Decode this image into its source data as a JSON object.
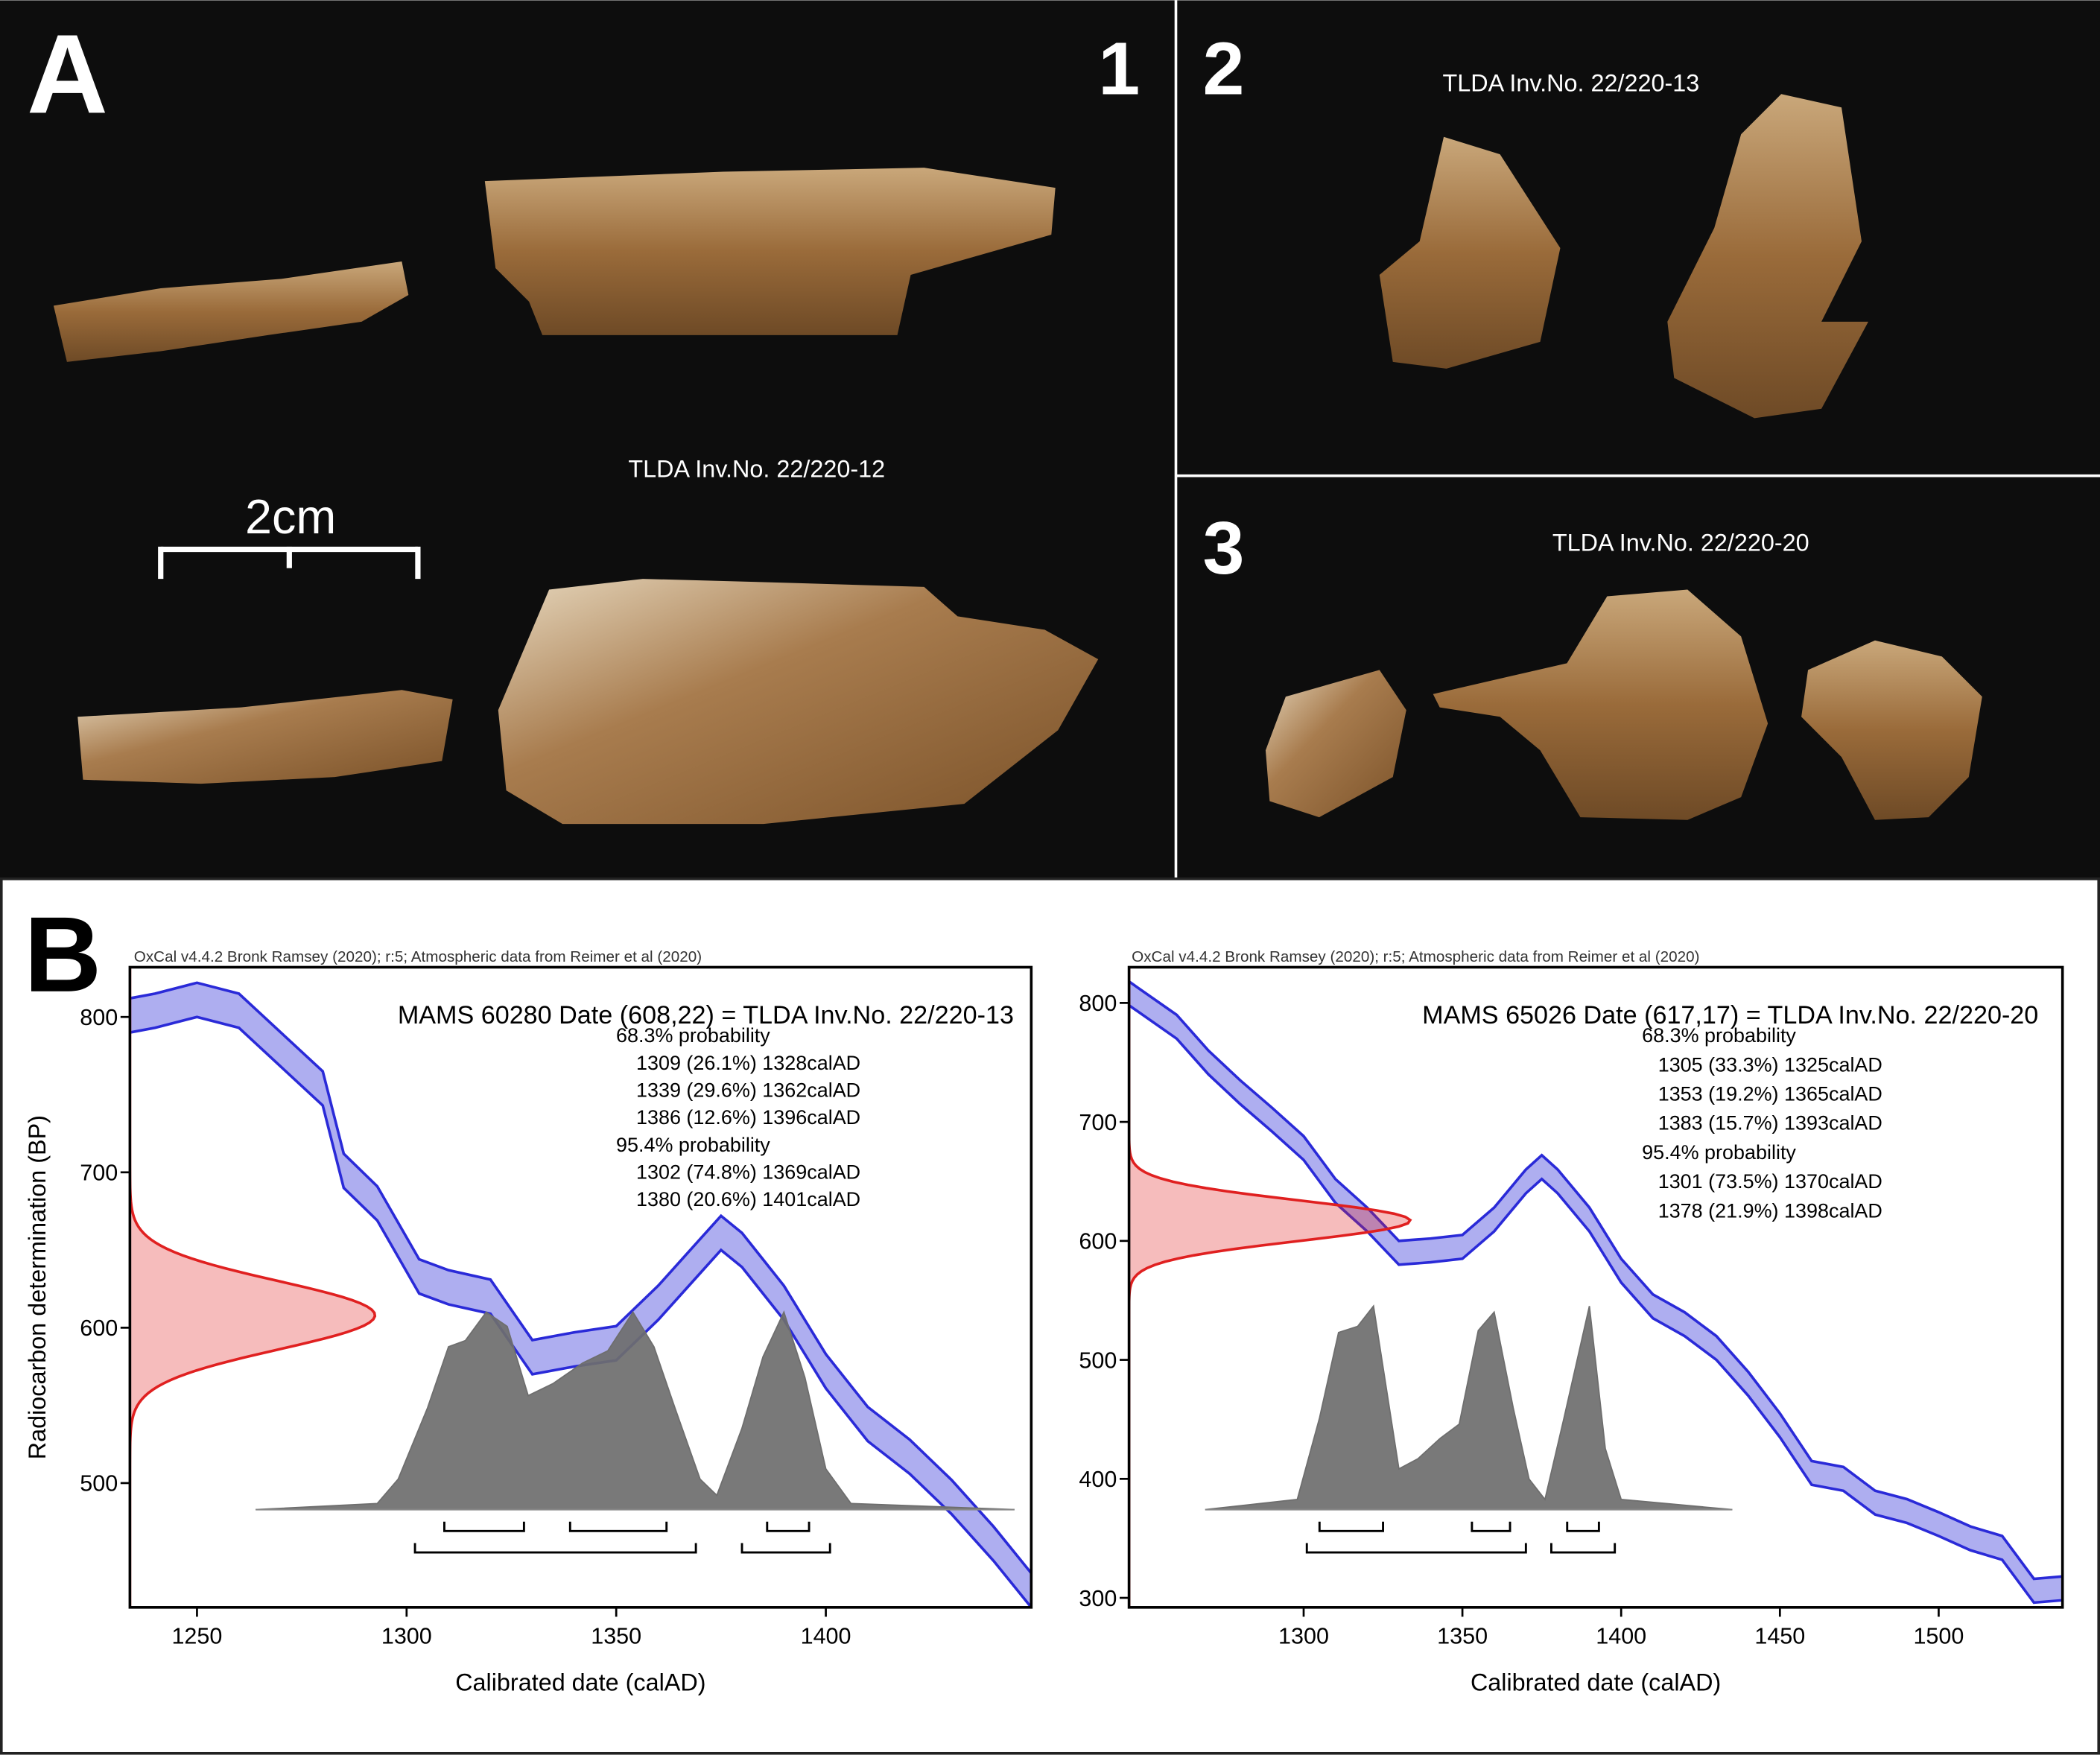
{
  "panel_a": {
    "label": "A",
    "scale_bar": "2cm",
    "panels": [
      {
        "number": "1",
        "caption": "TLDA Inv.No. 22/220-12"
      },
      {
        "number": "2",
        "caption": "TLDA Inv.No. 22/220-13"
      },
      {
        "number": "3",
        "caption": "TLDA Inv.No. 22/220-20"
      }
    ]
  },
  "panel_b": {
    "label": "B"
  },
  "chart_data": [
    {
      "type": "calibration",
      "header": "OxCal v4.4.2 Bronk Ramsey (2020); r:5; Atmospheric data from Reimer et al (2020)",
      "title": "MAMS 60280 Date (608,22) = TLDA Inv.No. 22/220-13",
      "x_label": "Calibrated date (calAD)",
      "y_label": "Radiocarbon determination (BP)",
      "xlim": [
        1234,
        1449
      ],
      "ylim": [
        420,
        832
      ],
      "xticks": [
        1250,
        1300,
        1350,
        1400
      ],
      "yticks": [
        500,
        600,
        700,
        800
      ],
      "band_color": "#2a2ad8",
      "measurement_color": "#e02020",
      "distribution_color": "#6e6e6e",
      "measurement": {
        "mean": 608,
        "error": 22
      },
      "calibration": {
        "x": [
          1234,
          1240,
          1250,
          1260,
          1270,
          1280,
          1285,
          1293,
          1303,
          1310,
          1320,
          1330,
          1340,
          1350,
          1360,
          1370,
          1375,
          1380,
          1390,
          1400,
          1410,
          1420,
          1430,
          1440,
          1449
        ],
        "upper": [
          812,
          815,
          822,
          815,
          790,
          765,
          712,
          691,
          644,
          637,
          631,
          592,
          597,
          601,
          627,
          657,
          672,
          661,
          627,
          583,
          549,
          528,
          502,
          472,
          442
        ],
        "lower": [
          790,
          793,
          800,
          793,
          768,
          743,
          690,
          669,
          622,
          615,
          609,
          570,
          575,
          579,
          605,
          635,
          650,
          639,
          605,
          561,
          527,
          506,
          480,
          450,
          420
        ]
      },
      "distribution": {
        "x": [
          1264,
          1293,
          1298,
          1305,
          1310,
          1314,
          1319,
          1324,
          1329,
          1335,
          1342,
          1348,
          1354,
          1359,
          1364,
          1370,
          1374,
          1380,
          1385,
          1390,
          1395,
          1400,
          1406,
          1445
        ],
        "values": [
          0,
          0.03,
          0.15,
          0.5,
          0.8,
          0.83,
          0.97,
          0.9,
          0.56,
          0.62,
          0.72,
          0.78,
          0.97,
          0.8,
          0.5,
          0.15,
          0.07,
          0.4,
          0.75,
          0.97,
          0.65,
          0.2,
          0.03,
          0
        ]
      },
      "probabilities": [
        {
          "heading": "68.3% probability",
          "ranges": [
            "1309 (26.1%) 1328calAD",
            "1339 (29.6%) 1362calAD",
            "1386 (12.6%) 1396calAD"
          ],
          "intervals": [
            [
              1309,
              1328
            ],
            [
              1339,
              1362
            ],
            [
              1386,
              1396
            ]
          ]
        },
        {
          "heading": "95.4% probability",
          "ranges": [
            "1302 (74.8%) 1369calAD",
            "1380 (20.6%) 1401calAD"
          ],
          "intervals": [
            [
              1302,
              1369
            ],
            [
              1380,
              1401
            ]
          ]
        }
      ]
    },
    {
      "type": "calibration",
      "header": "OxCal v4.4.2 Bronk Ramsey (2020); r:5; Atmospheric data from Reimer et al (2020)",
      "title": "MAMS 65026 Date (617,17) = TLDA Inv.No. 22/220-20",
      "x_label": "Calibrated date (calAD)",
      "y_label": null,
      "xlim": [
        1245,
        1539
      ],
      "ylim": [
        292,
        830
      ],
      "xticks": [
        1300,
        1350,
        1400,
        1450,
        1500
      ],
      "yticks": [
        300,
        400,
        500,
        600,
        700,
        800
      ],
      "band_color": "#2a2ad8",
      "measurement_color": "#e02020",
      "distribution_color": "#6e6e6e",
      "measurement": {
        "mean": 617,
        "error": 17
      },
      "calibration": {
        "x": [
          1245,
          1260,
          1270,
          1280,
          1290,
          1300,
          1310,
          1320,
          1330,
          1340,
          1350,
          1360,
          1370,
          1375,
          1380,
          1390,
          1400,
          1410,
          1420,
          1430,
          1440,
          1450,
          1460,
          1470,
          1480,
          1490,
          1500,
          1510,
          1520,
          1530,
          1539
        ],
        "upper": [
          818,
          790,
          760,
          735,
          712,
          688,
          652,
          628,
          600,
          602,
          605,
          628,
          660,
          672,
          660,
          628,
          585,
          555,
          540,
          520,
          490,
          455,
          415,
          410,
          390,
          383,
          372,
          360,
          352,
          316,
          318
        ],
        "lower": [
          798,
          770,
          740,
          715,
          692,
          668,
          632,
          608,
          580,
          582,
          585,
          608,
          640,
          652,
          640,
          608,
          565,
          535,
          520,
          500,
          470,
          435,
          395,
          390,
          370,
          363,
          352,
          340,
          332,
          296,
          298
        ]
      },
      "distribution": {
        "x": [
          1269,
          1298,
          1305,
          1311,
          1317,
          1322,
          1330,
          1336,
          1343,
          1349,
          1355,
          1360,
          1366,
          1371,
          1376,
          1382,
          1390,
          1395,
          1400,
          1435
        ],
        "values": [
          0,
          0.05,
          0.45,
          0.87,
          0.9,
          1.0,
          0.2,
          0.25,
          0.35,
          0.42,
          0.88,
          0.97,
          0.5,
          0.15,
          0.05,
          0.45,
          1.0,
          0.3,
          0.05,
          0
        ]
      },
      "probabilities": [
        {
          "heading": "68.3% probability",
          "ranges": [
            "1305 (33.3%) 1325calAD",
            "1353 (19.2%) 1365calAD",
            "1383 (15.7%) 1393calAD"
          ],
          "intervals": [
            [
              1305,
              1325
            ],
            [
              1353,
              1365
            ],
            [
              1383,
              1393
            ]
          ]
        },
        {
          "heading": "95.4% probability",
          "ranges": [
            "1301 (73.5%) 1370calAD",
            "1378 (21.9%) 1398calAD"
          ],
          "intervals": [
            [
              1301,
              1370
            ],
            [
              1378,
              1398
            ]
          ]
        }
      ]
    }
  ]
}
